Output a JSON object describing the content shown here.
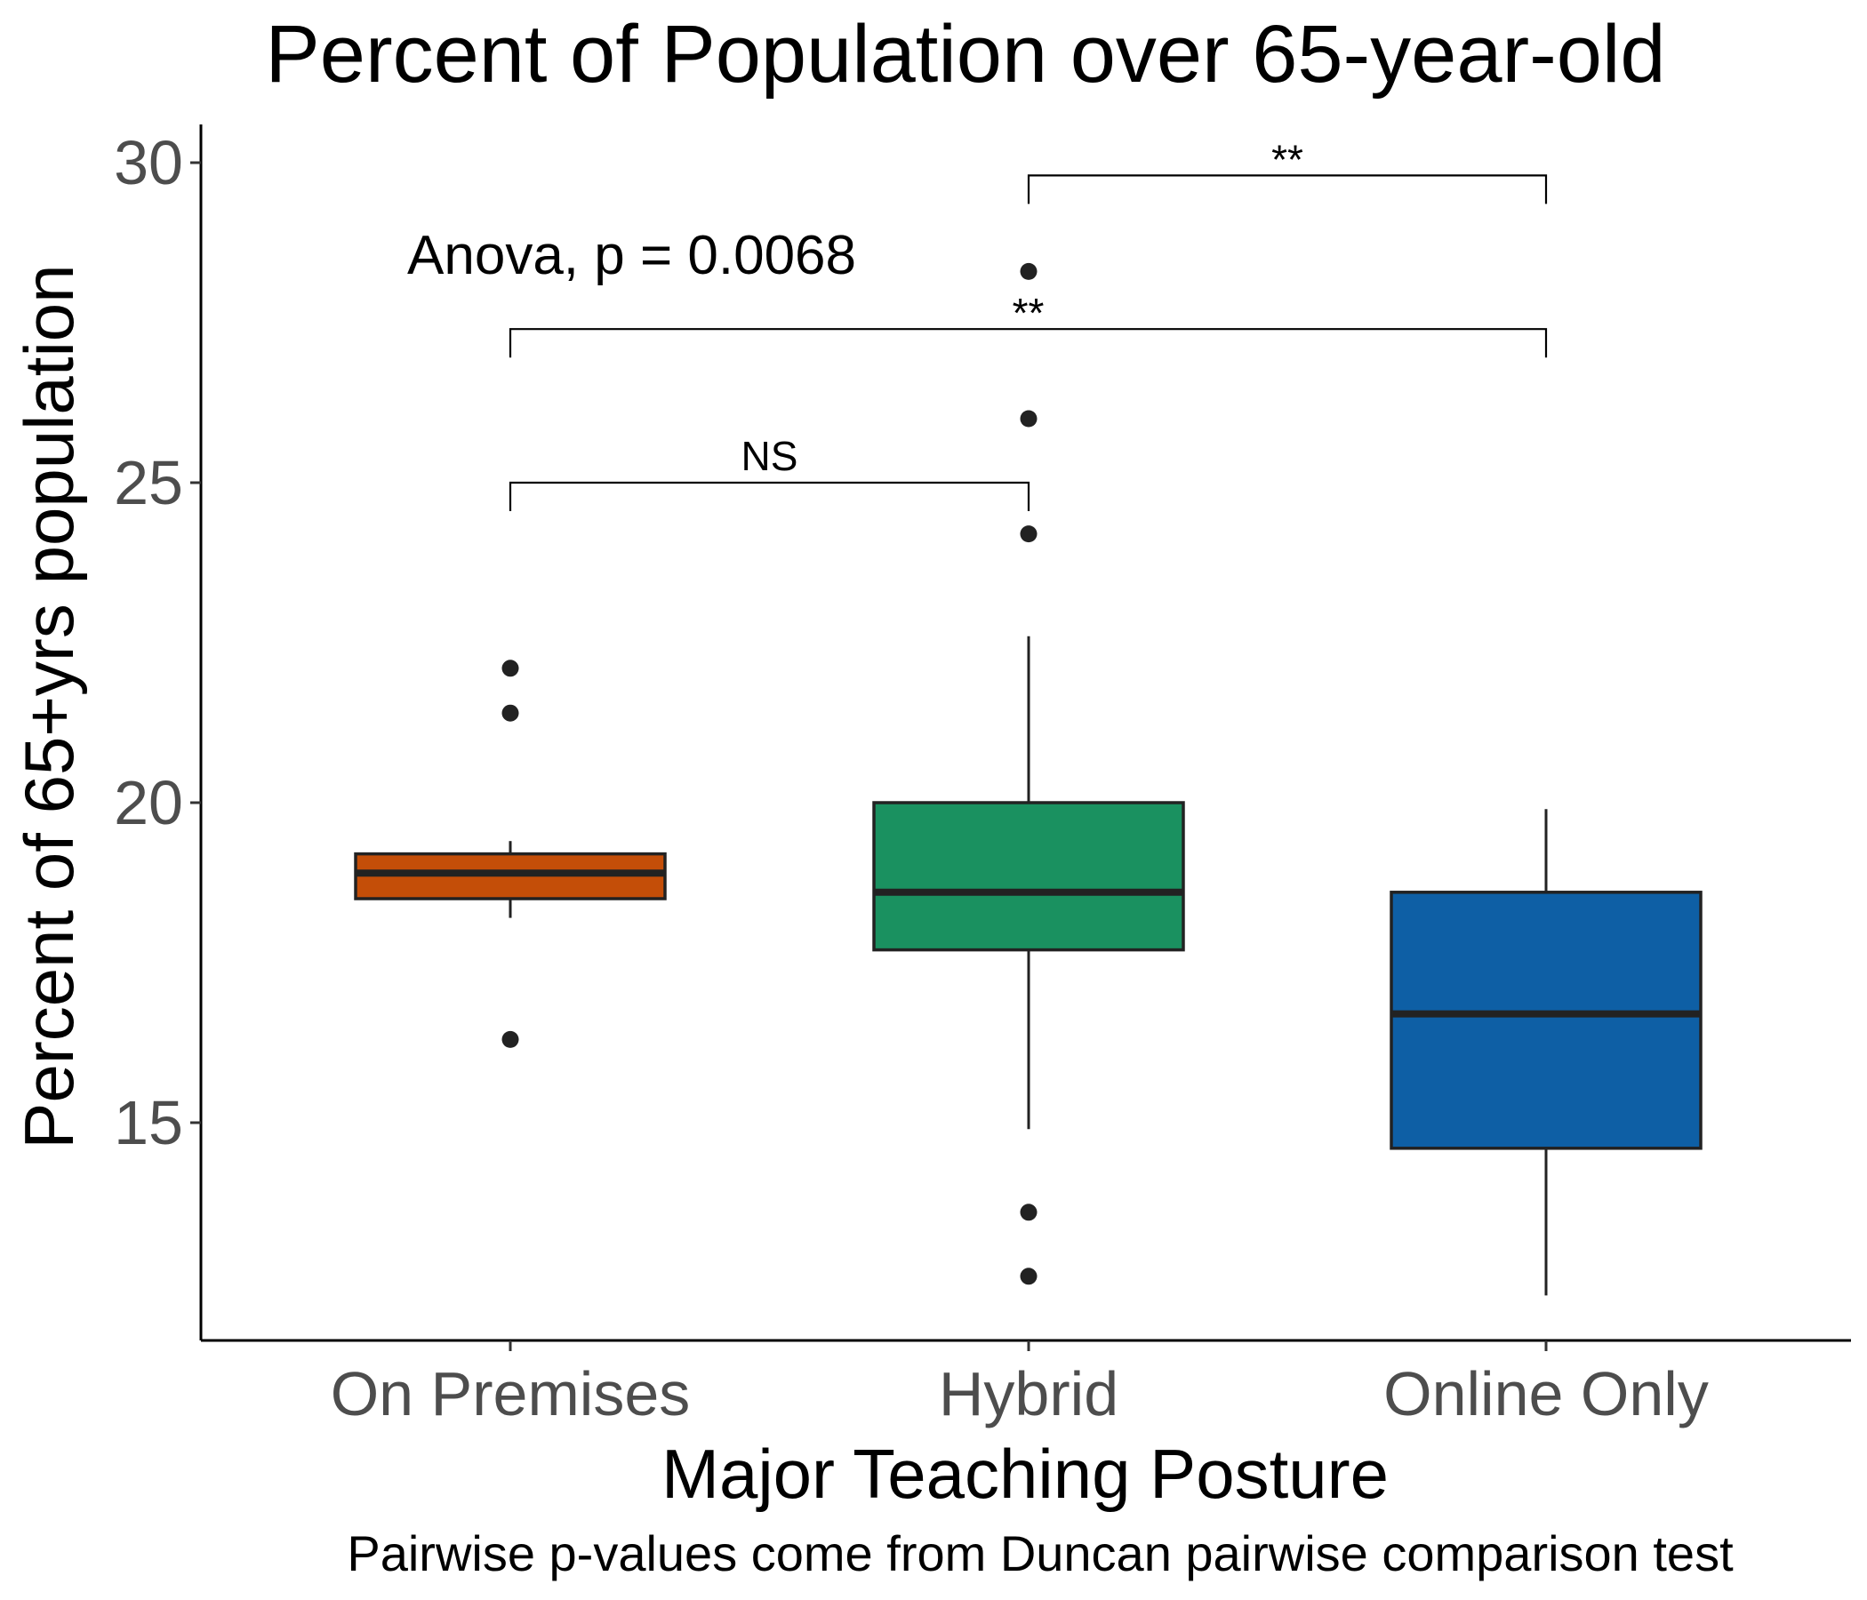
{
  "chart_data": {
    "type": "box",
    "title": "Percent of Population over 65-year-old",
    "xlabel": "Major Teaching  Posture",
    "ylabel": "Percent of 65+yrs population",
    "caption": "Pairwise p-values come from Duncan pairwise comparison test",
    "anova_label": "Anova, p = 0.0068",
    "ylim": [
      11.6,
      30.6
    ],
    "yticks": [
      15,
      20,
      25,
      30
    ],
    "ytick_labels": [
      "15",
      "20",
      "25",
      "30"
    ],
    "grid": false,
    "legend": "none",
    "categories": [
      "On Premises",
      "Hybrid",
      "Online Only"
    ],
    "boxes": [
      {
        "category": "On Premises",
        "whisker_low": 18.2,
        "q1": 18.5,
        "median": 18.9,
        "q3": 19.2,
        "whisker_high": 19.4,
        "outliers": [
          22.1,
          21.4,
          16.3
        ],
        "color": "#c44e08"
      },
      {
        "category": "Hybrid",
        "whisker_low": 14.9,
        "q1": 17.7,
        "median": 18.6,
        "q3": 20.0,
        "whisker_high": 22.6,
        "outliers": [
          28.3,
          26.0,
          24.2,
          13.6,
          12.6
        ],
        "color": "#1a9160"
      },
      {
        "category": "Online Only",
        "whisker_low": 12.3,
        "q1": 14.6,
        "median": 16.7,
        "q3": 18.6,
        "whisker_high": 19.9,
        "outliers": [],
        "color": "#0e5fa5"
      }
    ],
    "comparisons": [
      {
        "from": "On Premises",
        "to": "Hybrid",
        "label": "NS",
        "y": 25.0
      },
      {
        "from": "On Premises",
        "to": "Online Only",
        "label": "**",
        "y": 27.4
      },
      {
        "from": "Hybrid",
        "to": "Online Only",
        "label": "**",
        "y": 29.8
      }
    ]
  }
}
